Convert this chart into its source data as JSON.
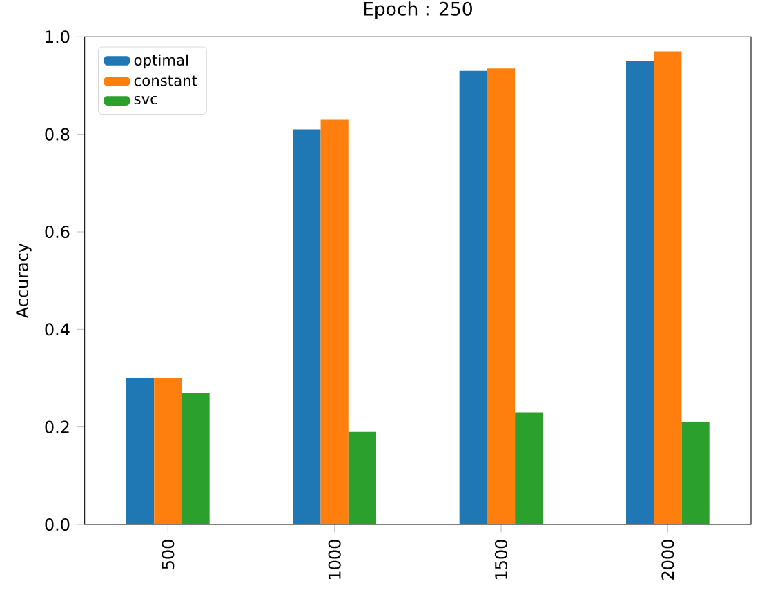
{
  "chart_data": {
    "type": "bar",
    "title": "Epoch : 250",
    "ylabel": "Accuracy",
    "categories": [
      "500",
      "1000",
      "1500",
      "2000"
    ],
    "series": [
      {
        "name": "optimal",
        "color": "#1f77b4",
        "values": [
          0.3,
          0.81,
          0.93,
          0.95
        ]
      },
      {
        "name": "constant",
        "color": "#ff7f0e",
        "values": [
          0.3,
          0.83,
          0.935,
          0.97
        ]
      },
      {
        "name": "svc",
        "color": "#2ca02c",
        "values": [
          0.27,
          0.19,
          0.23,
          0.21
        ]
      }
    ],
    "ylim": [
      0,
      1.0
    ],
    "yticks": [
      {
        "value": 0,
        "label": "0.0"
      },
      {
        "value": 0.2,
        "label": "0.2"
      },
      {
        "value": 0.4,
        "label": "0.4"
      },
      {
        "value": 0.6,
        "label": "0.6"
      },
      {
        "value": 0.8,
        "label": "0.8"
      },
      {
        "value": 1.0,
        "label": "1.0"
      }
    ],
    "legend": "top left",
    "grid": false
  }
}
